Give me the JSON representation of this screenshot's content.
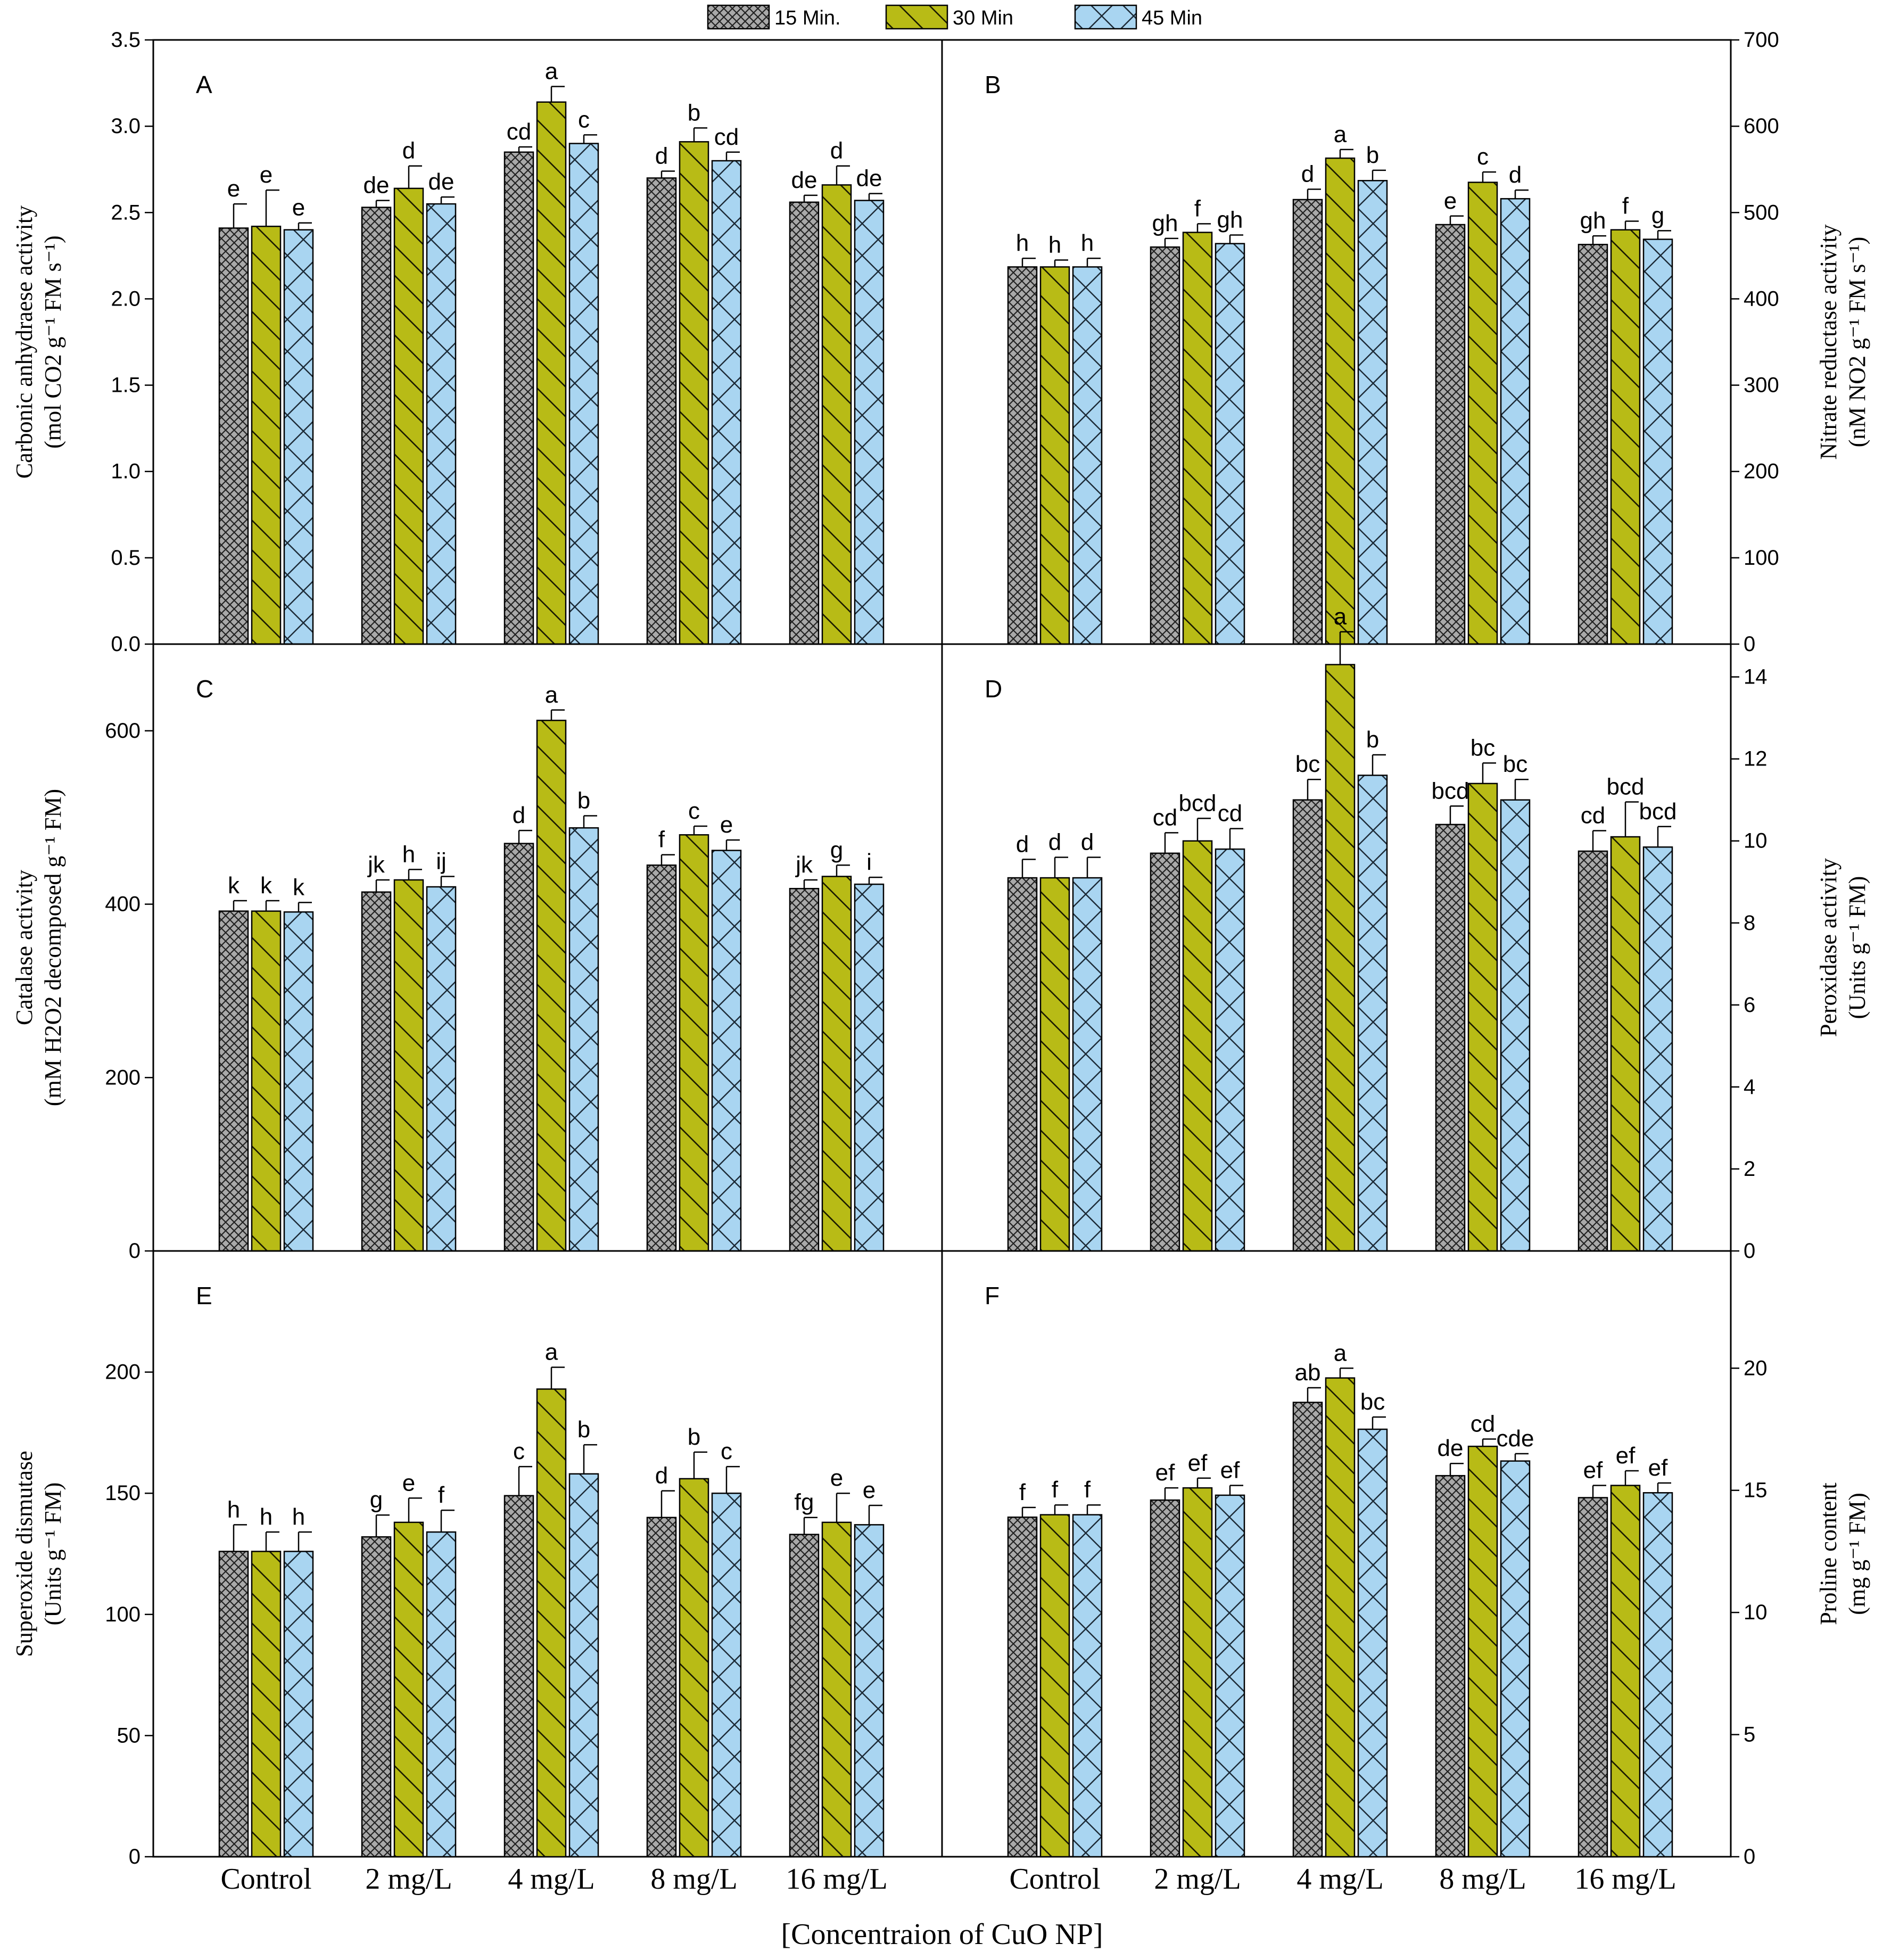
{
  "legend": [
    {
      "label": "15 Min.",
      "pattern": "crosshatch",
      "color": "#a6a6a6"
    },
    {
      "label": "30 Min",
      "pattern": "diagonal",
      "color": "#b5b81a"
    },
    {
      "label": "45 Min",
      "pattern": "xhatch",
      "color": "#a9d4f0"
    }
  ],
  "categories": [
    "Control",
    "2 mg/L",
    "4 mg/L",
    "8 mg/L",
    "16 mg/L"
  ],
  "x_title": "[Concentraion of CuO NP]",
  "chart_data": [
    {
      "type": "bar",
      "label": "A",
      "side": "left",
      "ylabel_lines": [
        "Carbonic anhydraese activity",
        "(mol CO2 g⁻¹ FM s⁻¹)"
      ],
      "ylim": [
        0,
        3.5
      ],
      "ticks": [
        "0.0",
        "0.5",
        "1.0",
        "1.5",
        "2.0",
        "2.5",
        "3.0",
        "3.5"
      ],
      "series": [
        {
          "name": "15 Min.",
          "values": [
            2.41,
            2.53,
            2.85,
            2.7,
            2.56
          ],
          "errors": [
            0.14,
            0.04,
            0.03,
            0.04,
            0.04
          ],
          "letters": [
            "e",
            "de",
            "cd",
            "d",
            "de"
          ]
        },
        {
          "name": "30 Min",
          "values": [
            2.42,
            2.64,
            3.14,
            2.91,
            2.66
          ],
          "errors": [
            0.21,
            0.13,
            0.09,
            0.08,
            0.11
          ],
          "letters": [
            "e",
            "d",
            "a",
            "b",
            "d"
          ]
        },
        {
          "name": "45 Min",
          "values": [
            2.4,
            2.55,
            2.9,
            2.8,
            2.57
          ],
          "errors": [
            0.04,
            0.04,
            0.05,
            0.05,
            0.04
          ],
          "letters": [
            "e",
            "de",
            "c",
            "cd",
            "de"
          ]
        }
      ]
    },
    {
      "type": "bar",
      "label": "B",
      "side": "right",
      "ylabel_lines": [
        "Nitrate reductase activity",
        "(nM NO2 g⁻¹ FM s⁻¹)"
      ],
      "ylim": [
        0,
        700
      ],
      "ticks": [
        "0",
        "100",
        "200",
        "300",
        "400",
        "500",
        "600",
        "700"
      ],
      "series": [
        {
          "name": "15 Min.",
          "values": [
            437,
            460,
            515,
            486,
            463
          ],
          "errors": [
            10,
            10,
            12,
            10,
            10
          ],
          "letters": [
            "h",
            "gh",
            "d",
            "e",
            "gh"
          ]
        },
        {
          "name": "30 Min",
          "values": [
            437,
            477,
            563,
            535,
            480
          ],
          "errors": [
            8,
            10,
            10,
            12,
            10
          ],
          "letters": [
            "h",
            "f",
            "a",
            "c",
            "f"
          ]
        },
        {
          "name": "45 Min",
          "values": [
            437,
            464,
            537,
            516,
            469
          ],
          "errors": [
            10,
            10,
            12,
            10,
            10
          ],
          "letters": [
            "h",
            "gh",
            "b",
            "d",
            "g"
          ]
        }
      ]
    },
    {
      "type": "bar",
      "label": "C",
      "side": "left",
      "ylabel_lines": [
        "Catalase activity",
        "(mM H2O2 decomposed g⁻¹ FM)"
      ],
      "ylim": [
        0,
        700
      ],
      "ticks": [
        "0",
        "200",
        "400",
        "600"
      ],
      "series": [
        {
          "name": "15 Min.",
          "values": [
            392,
            414,
            470,
            445,
            418
          ],
          "errors": [
            12,
            14,
            15,
            12,
            10
          ],
          "letters": [
            "k",
            "jk",
            "d",
            "f",
            "jk"
          ]
        },
        {
          "name": "30 Min",
          "values": [
            392,
            428,
            612,
            480,
            432
          ],
          "errors": [
            12,
            12,
            12,
            10,
            13
          ],
          "letters": [
            "k",
            "h",
            "a",
            "c",
            "g"
          ]
        },
        {
          "name": "45 Min",
          "values": [
            391,
            420,
            488,
            462,
            423
          ],
          "errors": [
            11,
            12,
            14,
            12,
            8
          ],
          "letters": [
            "k",
            "ij",
            "b",
            "e",
            "i"
          ]
        }
      ]
    },
    {
      "type": "bar",
      "label": "D",
      "side": "right",
      "ylabel_lines": [
        "Peroxidase activity",
        "(Units g⁻¹ FM)"
      ],
      "ylim": [
        0,
        14.8
      ],
      "ticks": [
        "0",
        "2",
        "4",
        "6",
        "8",
        "10",
        "12",
        "14"
      ],
      "series": [
        {
          "name": "15 Min.",
          "values": [
            9.1,
            9.7,
            11.0,
            10.4,
            9.75
          ],
          "errors": [
            0.45,
            0.5,
            0.5,
            0.45,
            0.5
          ],
          "letters": [
            "d",
            "cd",
            "bc",
            "bcd",
            "cd"
          ]
        },
        {
          "name": "30 Min",
          "values": [
            9.1,
            10.0,
            14.3,
            11.4,
            10.1
          ],
          "errors": [
            0.5,
            0.55,
            0.8,
            0.5,
            0.85
          ],
          "letters": [
            "d",
            "bcd",
            "a",
            "bc",
            "bcd"
          ]
        },
        {
          "name": "45 Min",
          "values": [
            9.1,
            9.8,
            11.6,
            11.0,
            9.85
          ],
          "errors": [
            0.5,
            0.5,
            0.5,
            0.5,
            0.5
          ],
          "letters": [
            "d",
            "cd",
            "b",
            "bc",
            "bcd"
          ]
        }
      ]
    },
    {
      "type": "bar",
      "label": "E",
      "side": "left",
      "ylabel_lines": [
        "Superoxide dismutase",
        "(Units g⁻¹ FM)"
      ],
      "ylim": [
        0,
        250
      ],
      "ticks": [
        "0",
        "50",
        "100",
        "150",
        "200"
      ],
      "series": [
        {
          "name": "15 Min.",
          "values": [
            126,
            132,
            149,
            140,
            133
          ],
          "errors": [
            11,
            9,
            12,
            11,
            7
          ],
          "letters": [
            "h",
            "g",
            "c",
            "d",
            "fg"
          ]
        },
        {
          "name": "30 Min",
          "values": [
            126,
            138,
            193,
            156,
            138
          ],
          "errors": [
            8,
            10,
            9,
            11,
            12
          ],
          "letters": [
            "h",
            "e",
            "a",
            "b",
            "e"
          ]
        },
        {
          "name": "45 Min",
          "values": [
            126,
            134,
            158,
            150,
            137
          ],
          "errors": [
            8,
            9,
            12,
            11,
            8
          ],
          "letters": [
            "h",
            "f",
            "b",
            "c",
            "e"
          ]
        }
      ]
    },
    {
      "type": "bar",
      "label": "F",
      "side": "right",
      "ylabel_lines": [
        "Proline content",
        "(mg g⁻¹ FM)"
      ],
      "ylim": [
        0,
        24.8
      ],
      "ticks": [
        "0",
        "5",
        "10",
        "15",
        "20"
      ],
      "series": [
        {
          "name": "15 Min.",
          "values": [
            13.9,
            14.6,
            18.6,
            15.6,
            14.7
          ],
          "errors": [
            0.4,
            0.5,
            0.6,
            0.5,
            0.5
          ],
          "letters": [
            "f",
            "ef",
            "ab",
            "de",
            "ef"
          ]
        },
        {
          "name": "30 Min",
          "values": [
            14.0,
            15.1,
            19.6,
            16.8,
            15.2
          ],
          "errors": [
            0.4,
            0.4,
            0.4,
            0.3,
            0.6
          ],
          "letters": [
            "f",
            "ef",
            "a",
            "cd",
            "ef"
          ]
        },
        {
          "name": "45 Min",
          "values": [
            14.0,
            14.8,
            17.5,
            16.2,
            14.9
          ],
          "errors": [
            0.4,
            0.4,
            0.5,
            0.3,
            0.4
          ],
          "letters": [
            "f",
            "ef",
            "bc",
            "cde",
            "ef"
          ]
        }
      ]
    }
  ]
}
